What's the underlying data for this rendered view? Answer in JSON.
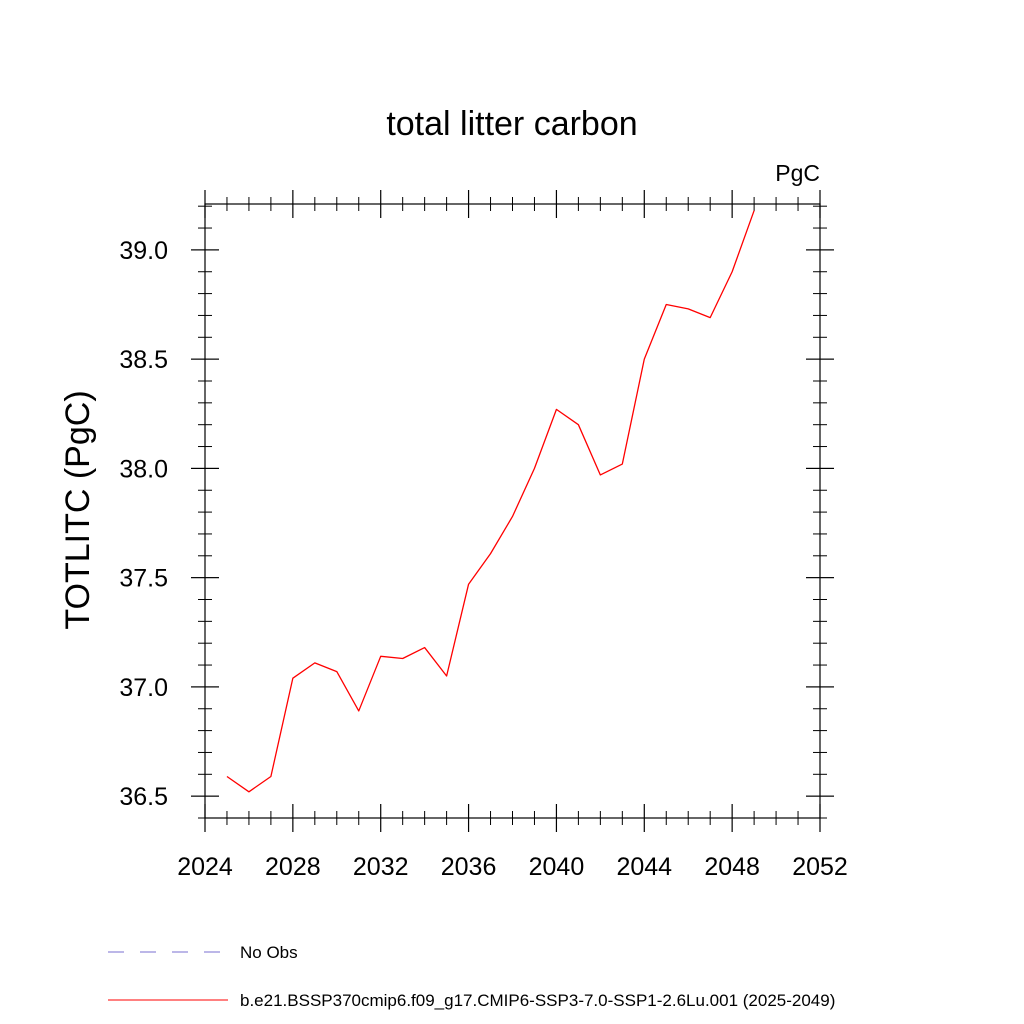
{
  "chart_data": {
    "type": "line",
    "title": "total litter carbon",
    "units": "PgC",
    "xlabel": "",
    "ylabel": "TOTLITC  (PgC)",
    "xlim": [
      2024,
      2052
    ],
    "ylim": [
      36.4,
      39.21
    ],
    "xticks": [
      2024,
      2028,
      2032,
      2036,
      2040,
      2044,
      2048,
      2052
    ],
    "yticks": [
      36.5,
      37.0,
      37.5,
      38.0,
      38.5,
      39.0
    ],
    "ytick_labels": [
      "36.5",
      "37.0",
      "37.5",
      "38.0",
      "38.5",
      "39.0"
    ],
    "grid": false,
    "series": [
      {
        "name": "b.e21.BSSP370cmip6.f09_g17.CMIP6-SSP3-7.0-SSP1-2.6Lu.001 (2025-2049)",
        "color": "#ff0000",
        "style": "solid",
        "x": [
          2025,
          2026,
          2027,
          2028,
          2029,
          2030,
          2031,
          2032,
          2033,
          2034,
          2035,
          2036,
          2037,
          2038,
          2039,
          2040,
          2041,
          2042,
          2043,
          2044,
          2045,
          2046,
          2047,
          2048,
          2049
        ],
        "y": [
          36.59,
          36.52,
          36.59,
          37.04,
          37.11,
          37.07,
          36.89,
          37.14,
          37.13,
          37.18,
          37.05,
          37.47,
          37.61,
          37.78,
          38.0,
          38.27,
          38.2,
          37.97,
          38.02,
          38.5,
          38.75,
          38.73,
          38.69,
          38.9,
          39.18
        ]
      }
    ],
    "legend": {
      "placement": "bottom-left",
      "entries": [
        {
          "label": "No Obs",
          "color": "#7a6fd0",
          "style": "dashed"
        },
        {
          "label": "b.e21.BSSP370cmip6.f09_g17.CMIP6-SSP3-7.0-SSP1-2.6Lu.001 (2025-2049)",
          "color": "#ff0000",
          "style": "solid"
        }
      ]
    }
  }
}
